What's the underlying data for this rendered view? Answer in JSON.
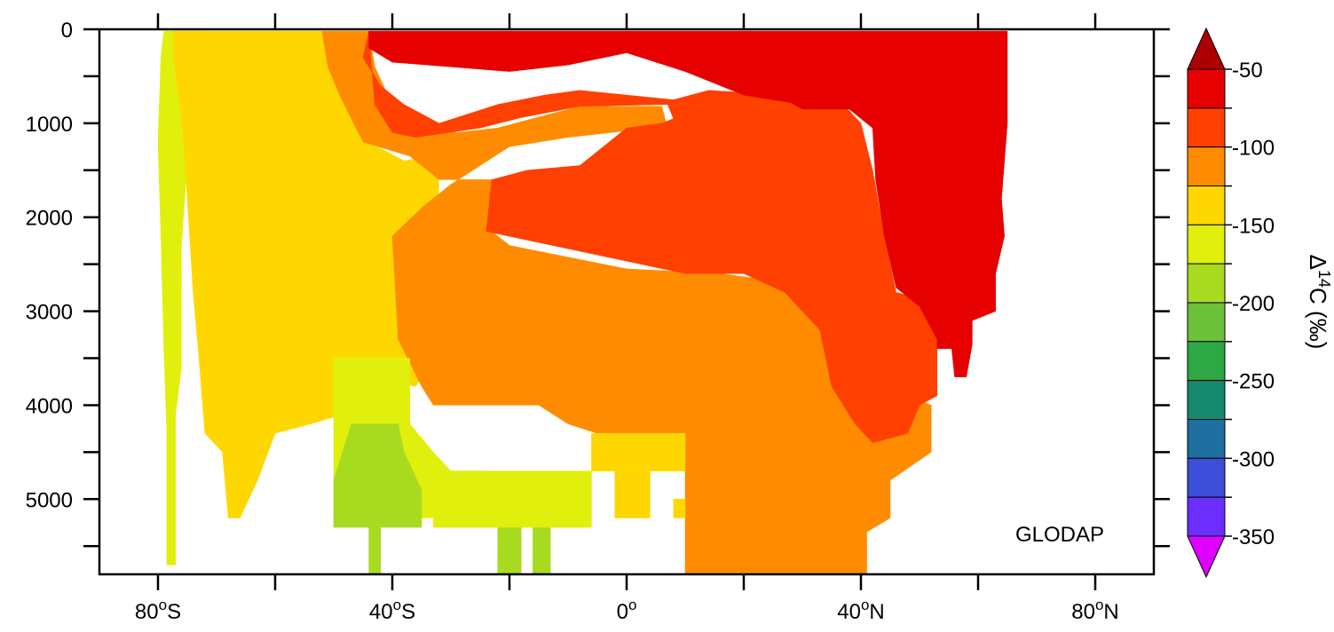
{
  "chart_data": {
    "type": "heatmap",
    "title": "",
    "annotation": "GLODAP",
    "x_axis": {
      "range": [
        -90,
        90
      ],
      "ticks": [
        -80,
        -60,
        -40,
        -20,
        0,
        20,
        40,
        60,
        80
      ],
      "labels": [
        {
          "value": -80,
          "text": "80",
          "sup": "o",
          "suffix": "S"
        },
        {
          "value": -40,
          "text": "40",
          "sup": "o",
          "suffix": "S"
        },
        {
          "value": 0,
          "text": "0",
          "sup": "o",
          "suffix": ""
        },
        {
          "value": 40,
          "text": "40",
          "sup": "o",
          "suffix": "N"
        },
        {
          "value": 80,
          "text": "80",
          "sup": "o",
          "suffix": "N"
        }
      ]
    },
    "y_axis": {
      "range": [
        0,
        5800
      ],
      "inverted": true,
      "ticks": [
        0,
        500,
        1000,
        1500,
        2000,
        2500,
        3000,
        3500,
        4000,
        4500,
        5000,
        5500
      ],
      "labels": [
        "0",
        "1000",
        "2000",
        "3000",
        "4000",
        "5000"
      ]
    },
    "colorbar": {
      "title_prefix": "Δ",
      "title_sup": "14",
      "title_suffix": "C (‰)",
      "levels": [
        -50,
        -75,
        -100,
        -125,
        -150,
        -175,
        -200,
        -225,
        -250,
        -275,
        -300,
        -325,
        -350
      ],
      "labels": [
        "-50",
        "-100",
        "-150",
        "-200",
        "-250",
        "-300",
        "-350"
      ],
      "colors": [
        "#E60000",
        "#FF4000",
        "#FF8C00",
        "#FFD700",
        "#E0F00C",
        "#A8DA20",
        "#6BC139",
        "#2EA845",
        "#14896D",
        "#1F6EA0",
        "#3C4FD6",
        "#6B2EFF"
      ],
      "over_color": "#AD0000",
      "under_color": "#E000FF"
    },
    "bands": [
      {
        "value": -162,
        "poly": [
          [
            -77,
            20
          ],
          [
            -72,
            20
          ],
          [
            -72,
            1300
          ],
          [
            -75,
            1400
          ],
          [
            -76,
            2300
          ],
          [
            -76,
            3600
          ],
          [
            -77,
            4100
          ],
          [
            -77,
            5700
          ],
          [
            -78.5,
            5700
          ],
          [
            -78.5,
            4300
          ],
          [
            -79,
            3400
          ],
          [
            -79.5,
            2200
          ],
          [
            -80,
            1200
          ],
          [
            -79.5,
            300
          ],
          [
            -79,
            20
          ]
        ]
      },
      {
        "value": -137,
        "poly": [
          [
            -77.5,
            20
          ],
          [
            -52,
            20
          ],
          [
            -50,
            400
          ],
          [
            -47,
            800
          ],
          [
            -44,
            1200
          ],
          [
            -38,
            1400
          ],
          [
            -33,
            1350
          ],
          [
            -32,
            1650
          ],
          [
            -33,
            2400
          ],
          [
            -33,
            3500
          ],
          [
            -36,
            3800
          ],
          [
            -40,
            3750
          ],
          [
            -43,
            4000
          ],
          [
            -54,
            4200
          ],
          [
            -60,
            4300
          ],
          [
            -63,
            4800
          ],
          [
            -66,
            5200
          ],
          [
            -68,
            5200
          ],
          [
            -69,
            4500
          ],
          [
            -72,
            4300
          ],
          [
            -73,
            3500
          ],
          [
            -74,
            2800
          ],
          [
            -75,
            1800
          ],
          [
            -76,
            900
          ],
          [
            -77,
            500
          ]
        ]
      },
      {
        "value": -112,
        "poly": [
          [
            -52,
            20
          ],
          [
            -44,
            20
          ],
          [
            -43,
            400
          ],
          [
            -40,
            800
          ],
          [
            -35,
            1000
          ],
          [
            -29,
            1100
          ],
          [
            -22,
            1050
          ],
          [
            -16,
            950
          ],
          [
            -8,
            820
          ],
          [
            6,
            820
          ],
          [
            7,
            1050
          ],
          [
            0,
            1080
          ],
          [
            -10,
            1150
          ],
          [
            -20,
            1250
          ],
          [
            -25,
            1450
          ],
          [
            -30,
            1650
          ],
          [
            -35,
            1900
          ],
          [
            -40,
            2200
          ],
          [
            -39,
            3300
          ],
          [
            -35,
            3800
          ],
          [
            -33,
            4000
          ],
          [
            -25,
            4000
          ],
          [
            -15,
            4000
          ],
          [
            -10,
            4200
          ],
          [
            -5,
            4300
          ],
          [
            5,
            4500
          ],
          [
            10,
            4700
          ],
          [
            10,
            5800
          ],
          [
            41,
            5800
          ],
          [
            41,
            5350
          ],
          [
            45,
            5200
          ],
          [
            45,
            4800
          ],
          [
            52,
            4500
          ],
          [
            52,
            4000
          ],
          [
            48,
            3900
          ],
          [
            43,
            3700
          ],
          [
            36,
            3600
          ],
          [
            34,
            3000
          ],
          [
            28,
            2700
          ],
          [
            16,
            2600
          ],
          [
            0,
            2550
          ],
          [
            -20,
            2300
          ],
          [
            -24,
            2100
          ],
          [
            -23,
            1600
          ],
          [
            -32,
            1600
          ],
          [
            -37,
            1350
          ],
          [
            -45,
            1200
          ],
          [
            -49,
            700
          ],
          [
            -51,
            400
          ]
        ]
      },
      {
        "value": -87,
        "poly": [
          [
            -44,
            20
          ],
          [
            -45,
            300
          ],
          [
            -42,
            600
          ],
          [
            -38,
            800
          ],
          [
            -32,
            1000
          ],
          [
            -22,
            800
          ],
          [
            -14,
            700
          ],
          [
            -8,
            650
          ],
          [
            0,
            700
          ],
          [
            8,
            750
          ],
          [
            14,
            650
          ],
          [
            22,
            680
          ],
          [
            30,
            720
          ],
          [
            37,
            800
          ],
          [
            40,
            1000
          ],
          [
            42,
            1500
          ],
          [
            44,
            2200
          ],
          [
            46,
            2800
          ],
          [
            52,
            2900
          ],
          [
            53,
            3300
          ],
          [
            53,
            3900
          ],
          [
            50,
            4000
          ],
          [
            48,
            4300
          ],
          [
            42,
            4400
          ],
          [
            39,
            4200
          ],
          [
            35,
            3800
          ],
          [
            33,
            3200
          ],
          [
            27,
            2800
          ],
          [
            20,
            2600
          ],
          [
            10,
            2600
          ],
          [
            -24,
            2150
          ],
          [
            -23,
            1600
          ],
          [
            -17,
            1500
          ],
          [
            -8,
            1450
          ],
          [
            0,
            1050
          ],
          [
            6,
            1000
          ],
          [
            8,
            950
          ],
          [
            7,
            800
          ],
          [
            -8,
            820
          ],
          [
            -18,
            940
          ],
          [
            -25,
            1050
          ],
          [
            -36,
            1150
          ],
          [
            -40,
            1100
          ],
          [
            -43,
            800
          ]
        ]
      },
      {
        "value": -62,
        "poly": [
          [
            -44,
            20
          ],
          [
            65,
            20
          ],
          [
            65,
            1000
          ],
          [
            64,
            1800
          ],
          [
            64.5,
            2200
          ],
          [
            63,
            2600
          ],
          [
            63,
            3000
          ],
          [
            59,
            3100
          ],
          [
            59,
            3350
          ],
          [
            58,
            3700
          ],
          [
            56,
            3700
          ],
          [
            55.5,
            3400
          ],
          [
            54,
            3400
          ],
          [
            53,
            3400
          ],
          [
            53,
            3300
          ],
          [
            50,
            2950
          ],
          [
            46,
            2750
          ],
          [
            44,
            2200
          ],
          [
            42.5,
            1600
          ],
          [
            42,
            1050
          ],
          [
            38,
            850
          ],
          [
            30,
            850
          ],
          [
            28,
            780
          ],
          [
            20,
            700
          ],
          [
            10,
            450
          ],
          [
            0,
            250
          ],
          [
            -10,
            380
          ],
          [
            -20,
            450
          ],
          [
            -30,
            400
          ],
          [
            -40,
            350
          ],
          [
            -44,
            200
          ]
        ]
      },
      {
        "value": -162,
        "poly": [
          [
            -50,
            3500
          ],
          [
            -37,
            3500
          ],
          [
            -37,
            4200
          ],
          [
            -33,
            4500
          ],
          [
            -30,
            4700
          ],
          [
            -24,
            4700
          ],
          [
            -24,
            5200
          ],
          [
            -50,
            5200
          ]
        ]
      },
      {
        "value": -187,
        "poly": [
          [
            -47,
            4200
          ],
          [
            -39,
            4200
          ],
          [
            -38,
            4500
          ],
          [
            -35,
            4900
          ],
          [
            -35,
            5300
          ],
          [
            -50,
            5300
          ],
          [
            -50,
            4800
          ]
        ]
      },
      {
        "value": -187,
        "poly": [
          [
            -44,
            5300
          ],
          [
            -42,
            5300
          ],
          [
            -42,
            5800
          ],
          [
            -44,
            5800
          ]
        ]
      },
      {
        "value": -187,
        "poly": [
          [
            -22,
            5300
          ],
          [
            -18,
            5300
          ],
          [
            -18,
            5800
          ],
          [
            -22,
            5800
          ]
        ]
      },
      {
        "value": -187,
        "poly": [
          [
            -16,
            5300
          ],
          [
            -13,
            5300
          ],
          [
            -13,
            5800
          ],
          [
            -16,
            5800
          ]
        ]
      },
      {
        "value": -162,
        "poly": [
          [
            -33,
            4700
          ],
          [
            -6,
            4700
          ],
          [
            -6,
            5300
          ],
          [
            -33,
            5300
          ]
        ]
      },
      {
        "value": -137,
        "poly": [
          [
            -6,
            4300
          ],
          [
            10,
            4300
          ],
          [
            10,
            4700
          ],
          [
            -6,
            4700
          ]
        ]
      },
      {
        "value": -137,
        "poly": [
          [
            -2,
            4700
          ],
          [
            4,
            4700
          ],
          [
            4,
            5200
          ],
          [
            -2,
            5200
          ]
        ]
      },
      {
        "value": -137,
        "poly": [
          [
            8,
            5000
          ],
          [
            10,
            5000
          ],
          [
            10,
            5200
          ],
          [
            8,
            5200
          ]
        ]
      }
    ]
  }
}
